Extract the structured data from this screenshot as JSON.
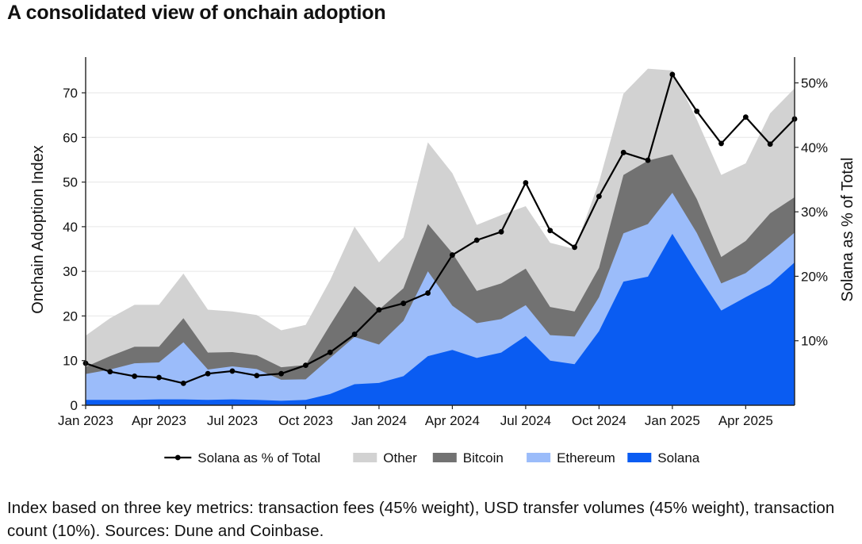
{
  "title": "A consolidated view of onchain adoption",
  "caption": "Index based on three key metrics: transaction fees (45% weight), USD transfer volumes (45% weight), transaction count (10%). Sources: Dune and Coinbase.",
  "colors": {
    "solana": "#0a5cf2",
    "ethereum": "#9bbcfa",
    "bitcoin": "#727272",
    "other": "#d2d2d2",
    "line": "#000000",
    "grid": "#e6e6e6",
    "axis": "#222222"
  },
  "chart_data": {
    "type": "area",
    "stacked": true,
    "x": [
      "Jan 2023",
      "Feb 2023",
      "Mar 2023",
      "Apr 2023",
      "May 2023",
      "Jun 2023",
      "Jul 2023",
      "Aug 2023",
      "Sep 2023",
      "Oct 2023",
      "Nov 2023",
      "Dec 2023",
      "Jan 2024",
      "Feb 2024",
      "Mar 2024",
      "Apr 2024",
      "May 2024",
      "Jun 2024",
      "Jul 2024",
      "Aug 2024",
      "Sep 2024",
      "Oct 2024",
      "Nov 2024",
      "Dec 2024",
      "Jan 2025",
      "Feb 2025",
      "Mar 2025",
      "Apr 2025",
      "May 2025",
      "Jun 2025"
    ],
    "x_ticks": [
      "Jan 2023",
      "Apr 2023",
      "Jul 2023",
      "Oct 2023",
      "Jan 2024",
      "Apr 2024",
      "Jul 2024",
      "Oct 2024",
      "Jan 2025",
      "Apr 2025"
    ],
    "ylabel": "Onchain Adoption Index",
    "y2label": "Solana as % of Total",
    "ylim": [
      0,
      78
    ],
    "yticks": [
      0,
      10,
      20,
      30,
      40,
      50,
      60,
      70
    ],
    "y2lim": [
      0,
      0.54
    ],
    "y2ticks": [
      0.1,
      0.2,
      0.3,
      0.4,
      0.5
    ],
    "y2tick_labels": [
      "10%",
      "20%",
      "30%",
      "40%",
      "50%"
    ],
    "grid": true,
    "legend": "bottom",
    "legend_order": [
      "Solana as % of Total",
      "Other",
      "Bitcoin",
      "Ethereum",
      "Solana"
    ],
    "series": [
      {
        "name": "Solana",
        "key": "solana",
        "values": [
          1.2,
          1.2,
          1.2,
          1.3,
          1.3,
          1.2,
          1.3,
          1.2,
          1.0,
          1.2,
          2.5,
          4.7,
          5.0,
          6.5,
          11.0,
          12.4,
          10.6,
          11.8,
          15.5,
          10.0,
          9.2,
          16.6,
          27.7,
          28.8,
          38.4,
          29.6,
          21.2,
          24.2,
          27.1,
          32.0
        ]
      },
      {
        "name": "Ethereum",
        "key": "ethereum",
        "values": [
          7.0,
          8.0,
          9.4,
          9.6,
          14.1,
          8.0,
          8.7,
          8.1,
          5.7,
          5.8,
          10.6,
          15.3,
          13.6,
          18.9,
          30.0,
          22.3,
          18.4,
          19.3,
          22.4,
          15.7,
          15.4,
          24.2,
          38.5,
          40.6,
          47.6,
          38.6,
          27.3,
          29.6,
          34.0,
          38.7
        ]
      },
      {
        "name": "Bitcoin",
        "key": "bitcoin",
        "values": [
          8.6,
          11.0,
          13.1,
          13.1,
          19.5,
          11.8,
          11.9,
          11.2,
          8.5,
          9.0,
          18.0,
          26.7,
          21.4,
          26.2,
          40.6,
          34.1,
          25.6,
          27.3,
          30.6,
          22.0,
          21.0,
          30.8,
          51.6,
          54.8,
          56.2,
          46.2,
          33.2,
          36.8,
          43.0,
          46.6
        ]
      },
      {
        "name": "Other",
        "key": "other",
        "values": [
          15.6,
          19.5,
          22.5,
          22.5,
          29.5,
          21.4,
          21.0,
          20.2,
          16.8,
          18.0,
          28.0,
          40.0,
          32.0,
          37.6,
          58.9,
          52.0,
          40.4,
          42.6,
          44.6,
          36.4,
          35.0,
          50.0,
          69.8,
          75.4,
          75.0,
          64.0,
          51.6,
          54.2,
          65.4,
          71.0
        ]
      }
    ],
    "line_series": {
      "name": "Solana as % of Total",
      "axis": "right",
      "values": [
        0.065,
        0.052,
        0.045,
        0.043,
        0.034,
        0.049,
        0.053,
        0.046,
        0.049,
        0.062,
        0.082,
        0.11,
        0.148,
        0.158,
        0.174,
        0.233,
        0.256,
        0.269,
        0.345,
        0.271,
        0.245,
        0.324,
        0.392,
        0.38,
        0.513,
        0.456,
        0.406,
        0.447,
        0.405,
        0.444
      ]
    }
  }
}
